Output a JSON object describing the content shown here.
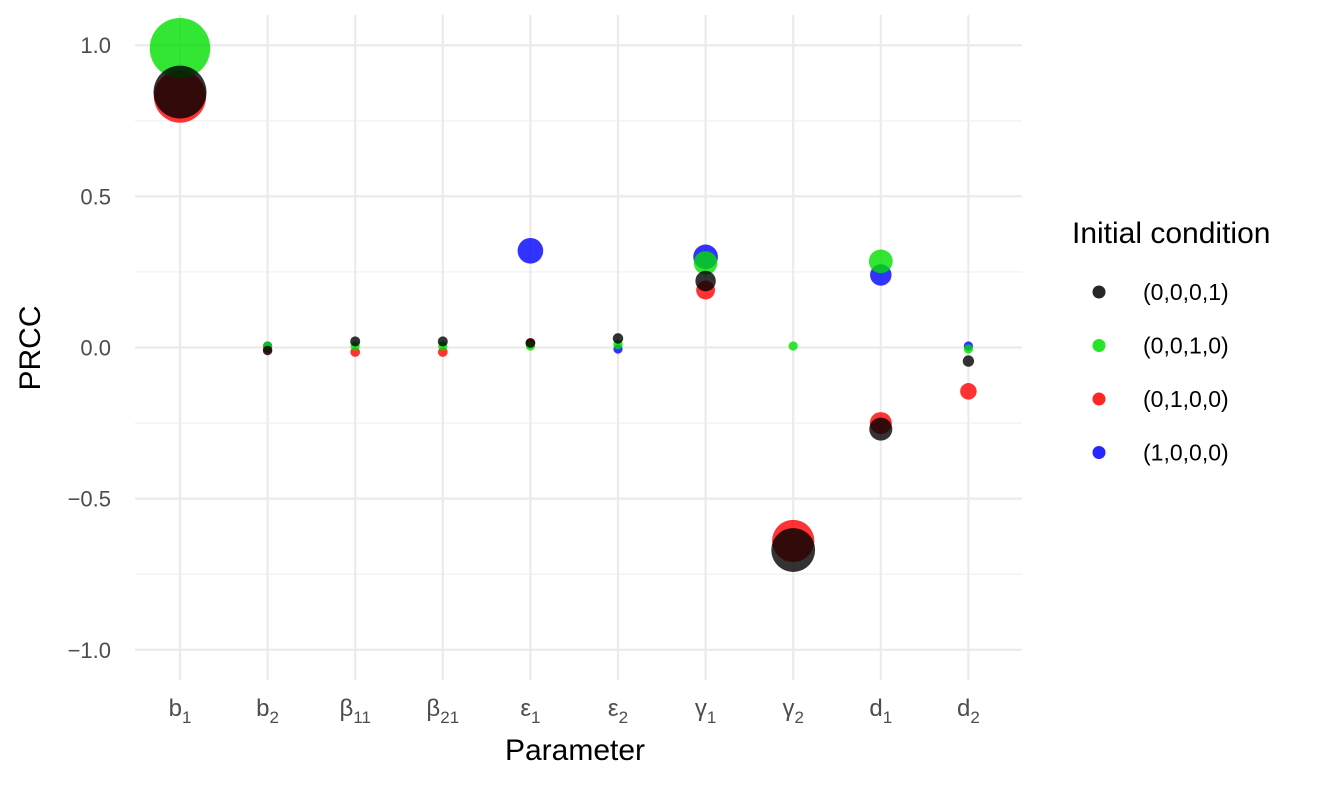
{
  "chart_data": {
    "type": "scatter",
    "xlabel": "Parameter",
    "ylabel": "PRCC",
    "ylim": [
      -1.1,
      1.1
    ],
    "yticks": [
      1.0,
      0.5,
      0.0,
      -0.5,
      -1.0
    ],
    "ytick_labels": [
      "1.0",
      "0.5",
      "0.0",
      "−0.5",
      "−1.0"
    ],
    "categories": [
      {
        "base": "b",
        "sub": "1"
      },
      {
        "base": "b",
        "sub": "2"
      },
      {
        "base": "β",
        "sub": "11"
      },
      {
        "base": "β",
        "sub": "21"
      },
      {
        "base": "ε",
        "sub": "1"
      },
      {
        "base": "ε",
        "sub": "2"
      },
      {
        "base": "γ",
        "sub": "1"
      },
      {
        "base": "γ",
        "sub": "2"
      },
      {
        "base": "d",
        "sub": "1"
      },
      {
        "base": "d",
        "sub": "2"
      }
    ],
    "grid": true,
    "legend": {
      "title": "Initial condition",
      "placement": "right"
    },
    "point_size_encodes": "absolute value of PRCC",
    "series": [
      {
        "name": "(1,0,0,0)",
        "color": "#0000ff",
        "values": [
          null,
          0.005,
          null,
          null,
          0.32,
          -0.005,
          0.3,
          null,
          0.24,
          0.005
        ]
      },
      {
        "name": "(0,1,0,0)",
        "color": "#ff0000",
        "values": [
          0.83,
          -0.005,
          -0.015,
          -0.015,
          0.015,
          null,
          0.19,
          -0.64,
          -0.25,
          -0.145
        ]
      },
      {
        "name": "(0,0,1,0)",
        "color": "#00e000",
        "values": [
          0.99,
          0.005,
          0.005,
          0.005,
          0.005,
          0.01,
          0.28,
          0.005,
          0.285,
          -0.005
        ]
      },
      {
        "name": "(0,0,0,1)",
        "color": "#000000",
        "values": [
          0.845,
          -0.01,
          0.02,
          0.02,
          0.015,
          0.03,
          0.22,
          -0.67,
          -0.27,
          -0.045
        ]
      }
    ]
  }
}
